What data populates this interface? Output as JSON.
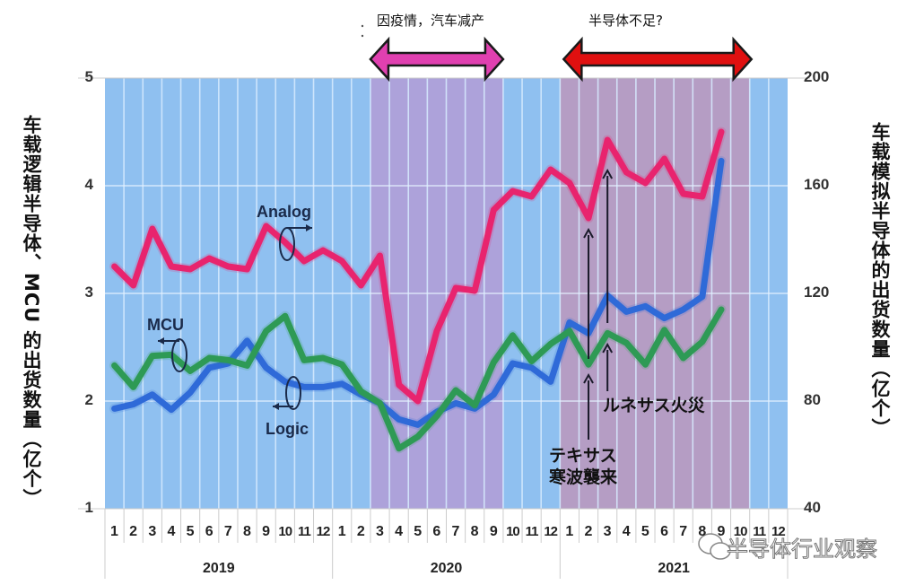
{
  "chart_data": {
    "type": "line",
    "title": "",
    "annotations_top": [
      {
        "text": "因疫情，汽车减产",
        "span": [
          "2020-3",
          "2020-8"
        ],
        "arrow_color": "#e040b0"
      },
      {
        "text": "半导体不足?",
        "span": [
          "2021-1",
          "2021-9"
        ],
        "arrow_color": "#e01010"
      }
    ],
    "ylabel_left": "车载逻辑半导体、MCU 的出货数量（亿个）",
    "ylabel_right": "车载模拟半导体的出货数量（亿个）",
    "ylim_left": [
      1,
      5
    ],
    "ylim_right": [
      40,
      200
    ],
    "yticks_left": [
      "1",
      "2",
      "3",
      "4",
      "5"
    ],
    "yticks_right": [
      "40",
      "80",
      "120",
      "160",
      "200"
    ],
    "x_months": [
      "1",
      "2",
      "3",
      "4",
      "5",
      "6",
      "7",
      "8",
      "9",
      "10",
      "11",
      "12",
      "1",
      "2",
      "3",
      "4",
      "5",
      "6",
      "7",
      "8",
      "9",
      "10",
      "11",
      "12",
      "1",
      "2",
      "3",
      "4",
      "5",
      "6",
      "7",
      "8",
      "9",
      "10",
      "11",
      "12"
    ],
    "x_years": [
      "2019",
      "2020",
      "2021"
    ],
    "grid": true,
    "series": [
      {
        "name": "Analog",
        "axis": "right",
        "color": "#e8246e",
        "values": [
          130,
          123,
          144,
          130,
          129,
          133,
          130,
          129,
          145,
          139,
          132,
          136,
          132,
          123,
          134,
          86,
          80,
          106,
          122,
          121,
          151,
          158,
          156,
          166,
          161,
          148,
          177,
          165,
          161,
          170,
          157,
          156,
          180
        ]
      },
      {
        "name": "Logic",
        "axis": "left",
        "color": "#2f6ad8",
        "values": [
          1.93,
          1.97,
          2.06,
          1.92,
          2.08,
          2.31,
          2.35,
          2.56,
          2.31,
          2.18,
          2.13,
          2.13,
          2.16,
          2.06,
          1.98,
          1.83,
          1.78,
          1.9,
          1.98,
          1.93,
          2.06,
          2.35,
          2.31,
          2.18,
          2.73,
          2.63,
          2.98,
          2.83,
          2.88,
          2.77,
          2.85,
          2.97,
          4.23
        ]
      },
      {
        "name": "MCU",
        "axis": "left",
        "color": "#2e9a55",
        "values": [
          2.33,
          2.13,
          2.42,
          2.43,
          2.28,
          2.4,
          2.38,
          2.33,
          2.65,
          2.79,
          2.38,
          2.4,
          2.34,
          2.09,
          1.98,
          1.56,
          1.67,
          1.86,
          2.1,
          1.96,
          2.36,
          2.61,
          2.37,
          2.53,
          2.65,
          2.34,
          2.63,
          2.54,
          2.34,
          2.66,
          2.4,
          2.55,
          2.85
        ]
      }
    ],
    "shaded_periods": [
      {
        "from_index": 14,
        "to_index": 20,
        "color": "#b0a0d8"
      },
      {
        "from_index": 24,
        "to_index": 33,
        "color": "#b89ac0"
      }
    ],
    "event_notes": [
      {
        "text_line1": "テキサス",
        "text_line2": "寒波襲来",
        "month": "2021-2"
      },
      {
        "text_line1": "ルネサス火災",
        "text_line2": "",
        "month": "2021-3"
      }
    ]
  },
  "labels": {
    "analog": "Analog",
    "mcu": "MCU",
    "logic": "Logic",
    "callout_left": "因疫情，汽车减产",
    "callout_right": "半导体不足?",
    "ylabel_left": "车载逻辑半导体、MCU 的出货数量（亿个）",
    "ylabel_right": "车载模拟半导体的出货数量（亿个）",
    "texas_1": "テキサス",
    "texas_2": "寒波襲来",
    "renesas": "ルネサス火災",
    "watermark": "半导体行业观察"
  }
}
